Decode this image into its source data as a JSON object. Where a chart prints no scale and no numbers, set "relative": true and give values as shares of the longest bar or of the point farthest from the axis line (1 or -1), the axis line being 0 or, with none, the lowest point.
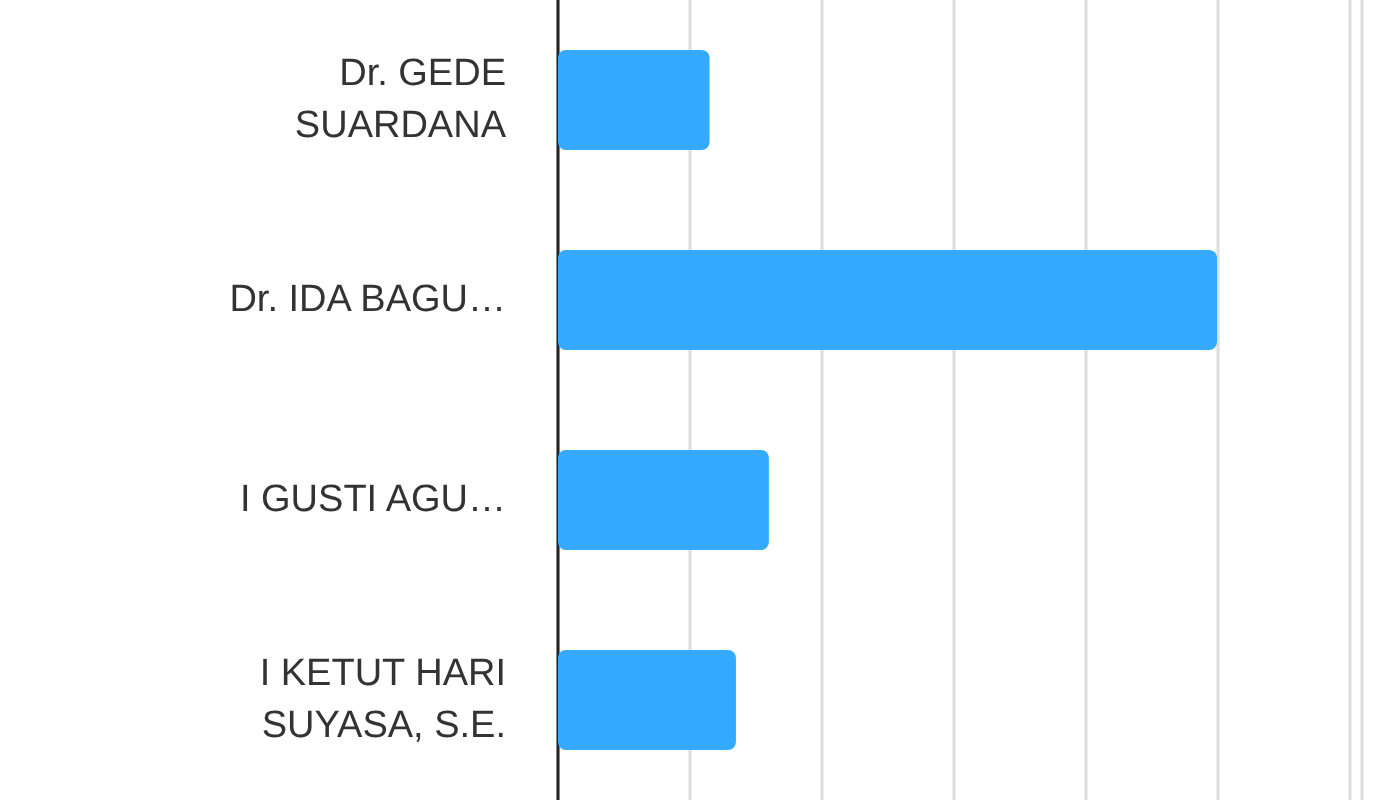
{
  "chart_data": {
    "type": "bar",
    "orientation": "horizontal",
    "relative": true,
    "grid": "x",
    "categories": [
      "Dr. GEDE\nSUARDANA",
      "Dr. IDA BAGU…",
      "I GUSTI AGU…",
      "I KETUT HARI\nSUYASA, S.E."
    ],
    "values": [
      0.23,
      1,
      0.32,
      0.27
    ],
    "color": "#33aaff"
  }
}
